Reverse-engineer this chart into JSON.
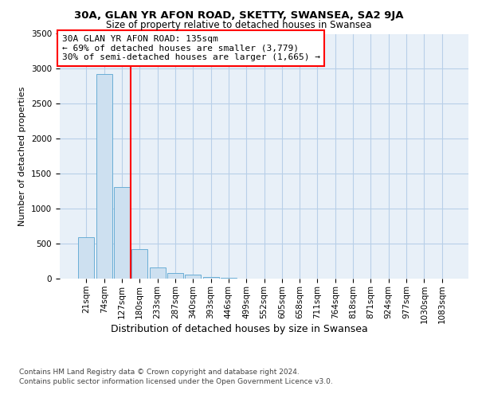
{
  "title1": "30A, GLAN YR AFON ROAD, SKETTY, SWANSEA, SA2 9JA",
  "title2": "Size of property relative to detached houses in Swansea",
  "xlabel": "Distribution of detached houses by size in Swansea",
  "ylabel": "Number of detached properties",
  "annotation_lines": [
    "30A GLAN YR AFON ROAD: 135sqm",
    "← 69% of detached houses are smaller (3,779)",
    "30% of semi-detached houses are larger (1,665) →"
  ],
  "footer1": "Contains HM Land Registry data © Crown copyright and database right 2024.",
  "footer2": "Contains public sector information licensed under the Open Government Licence v3.0.",
  "bar_labels": [
    "21sqm",
    "74sqm",
    "127sqm",
    "180sqm",
    "233sqm",
    "287sqm",
    "340sqm",
    "393sqm",
    "446sqm",
    "499sqm",
    "552sqm",
    "605sqm",
    "658sqm",
    "711sqm",
    "764sqm",
    "818sqm",
    "871sqm",
    "924sqm",
    "977sqm",
    "1030sqm",
    "1083sqm"
  ],
  "bar_values": [
    590,
    2930,
    1310,
    420,
    160,
    80,
    55,
    25,
    10,
    5,
    3,
    2,
    1,
    1,
    1,
    1,
    1,
    1,
    1,
    1,
    1
  ],
  "bar_color": "#cde0f0",
  "bar_edgecolor": "#6aaed6",
  "grid_color": "#b8cfe8",
  "bg_color": "#e8f0f8",
  "redline_x": 2.5,
  "ylim": [
    0,
    3500
  ],
  "yticks": [
    0,
    500,
    1000,
    1500,
    2000,
    2500,
    3000,
    3500
  ],
  "title1_fontsize": 9.5,
  "title2_fontsize": 8.5,
  "xlabel_fontsize": 9,
  "ylabel_fontsize": 8,
  "tick_fontsize": 7.5,
  "footer_fontsize": 6.5,
  "annot_fontsize": 8
}
